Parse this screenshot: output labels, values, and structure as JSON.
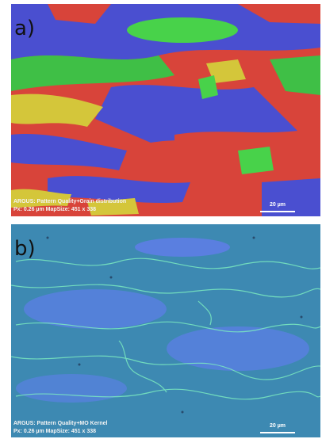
{
  "panels": [
    {
      "label": "a)",
      "caption": [
        "ARGUS: Pattern Quality+Grain distribution",
        "Px: 0.26 µm  MapSize: 451 x 338"
      ],
      "scale_bar": "20 µm"
    },
    {
      "label": "b)",
      "caption": [
        "ARGUS: Pattern Quality+MO Kernel",
        "Px: 0.26 µm  MapSize: 451 x 338"
      ],
      "scale_bar": "20 µm"
    }
  ]
}
